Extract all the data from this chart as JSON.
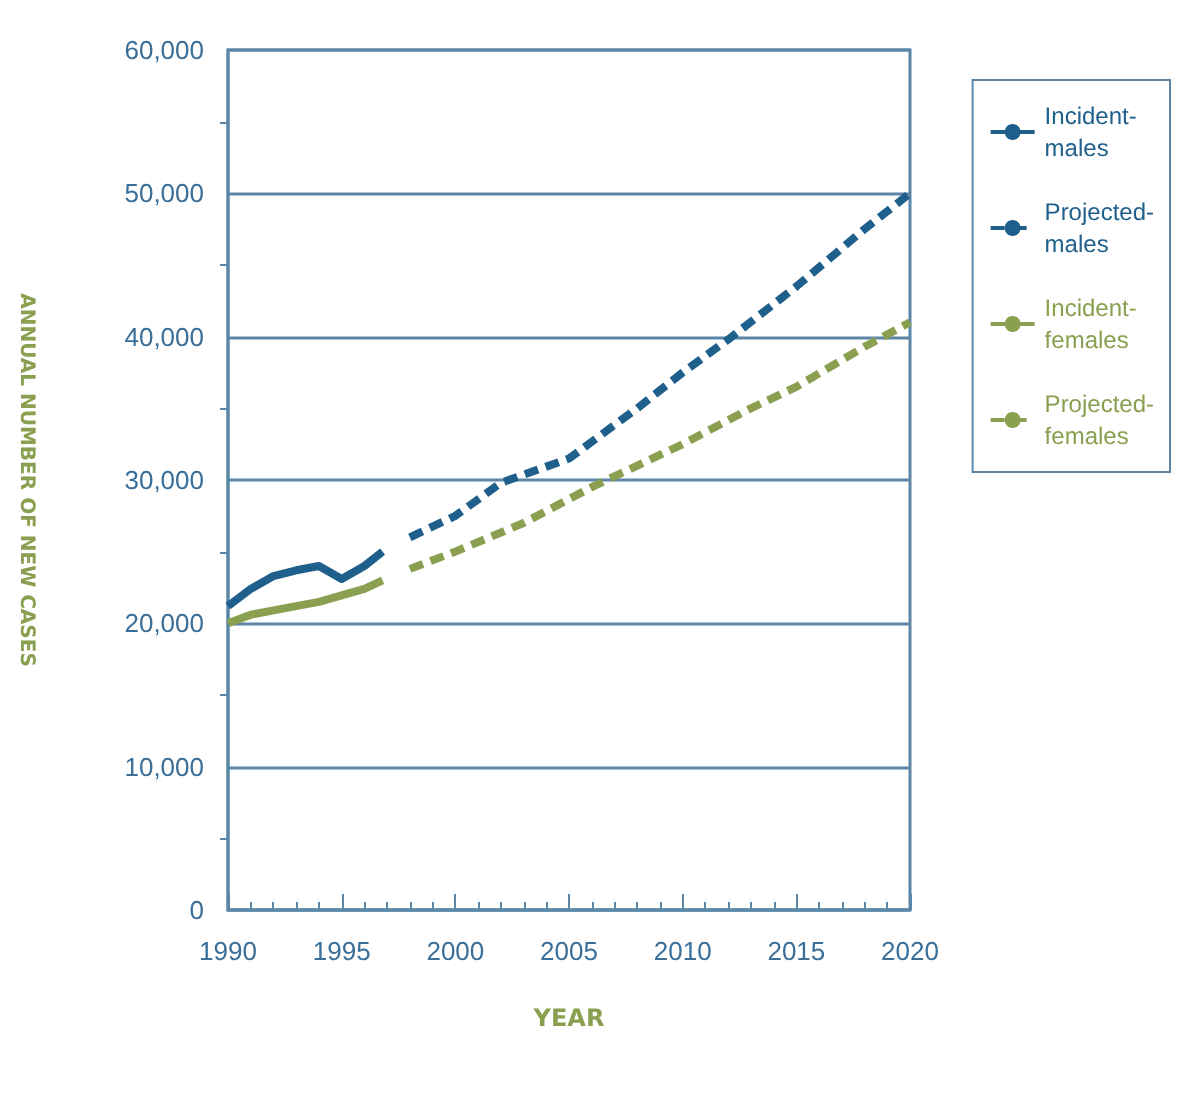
{
  "chart_data": {
    "type": "line",
    "xlabel": "YEAR",
    "ylabel": "ANNUAL NUMBER OF NEW CASES",
    "xlim": [
      1990,
      2020
    ],
    "xticks": [
      1990,
      1995,
      2000,
      2005,
      2010,
      2015,
      2020
    ],
    "ylim": [
      0,
      60000
    ],
    "yticks": [
      {
        "value": 0,
        "label": "0"
      },
      {
        "value": 10000,
        "label": "10,000"
      },
      {
        "value": 20000,
        "label": "20,000"
      },
      {
        "value": 30000,
        "label": "30,000"
      },
      {
        "value": 40000,
        "label": "40,000"
      },
      {
        "value": 50000,
        "label": "50,000"
      },
      {
        "value": 60000,
        "label": "60,000"
      }
    ],
    "grid": "y",
    "legend": "right",
    "marker": "none",
    "series": [
      {
        "name": "Incident-males",
        "color": "#1f5f8b",
        "line_style": "solid",
        "x": [
          1990,
          1991,
          1992,
          1993,
          1994,
          1995,
          1996,
          1996.8
        ],
        "values": [
          21200,
          22400,
          23300,
          23700,
          24000,
          23100,
          24000,
          25000
        ]
      },
      {
        "name": "Projected-males",
        "color": "#1f5f8b",
        "line_style": "dashed",
        "x": [
          1998,
          2000,
          2002,
          2005,
          2008,
          2010,
          2012,
          2015,
          2018,
          2020
        ],
        "values": [
          26000,
          27500,
          29800,
          31500,
          35000,
          37500,
          39800,
          43500,
          47500,
          50000
        ]
      },
      {
        "name": "Incident-females",
        "color": "#8aa050",
        "line_style": "solid",
        "x": [
          1990,
          1991,
          1992,
          1994,
          1996,
          1996.8
        ],
        "values": [
          20000,
          20600,
          20900,
          21500,
          22400,
          23000
        ]
      },
      {
        "name": "Projected-females",
        "color": "#8aa050",
        "line_style": "dashed",
        "x": [
          1998,
          2000,
          2003,
          2006,
          2010,
          2013,
          2015,
          2018,
          2020
        ],
        "values": [
          23800,
          25000,
          27000,
          29500,
          32500,
          35000,
          36500,
          39300,
          41000
        ]
      }
    ]
  }
}
